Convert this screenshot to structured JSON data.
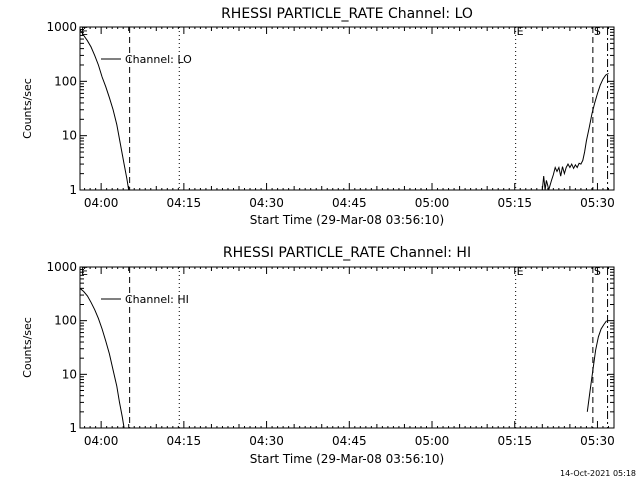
{
  "chart_data": [
    {
      "type": "line",
      "title": "RHESSI PARTICLE_RATE Channel: LO",
      "xlabel": "Start Time (29-Mar-08 03:56:10)",
      "ylabel": "Counts/sec",
      "y_scale": "log",
      "xlim": [
        "03:56:10",
        "05:33:00"
      ],
      "ylim": [
        1,
        1000
      ],
      "y_ticks": [
        "1",
        "10",
        "100",
        "1000"
      ],
      "x_ticks": [
        "04:00",
        "04:15",
        "04:30",
        "04:45",
        "05:00",
        "05:15",
        "05:30"
      ],
      "legend": {
        "position": "top-left",
        "entries": [
          "Channel: LO"
        ]
      },
      "markers": [
        {
          "label": "E",
          "time": "03:56:10",
          "style": "dotted"
        },
        {
          "label": "",
          "time": "04:05:10",
          "style": "dashed"
        },
        {
          "label": "",
          "time": "04:14:10",
          "style": "dotted"
        },
        {
          "label": "E",
          "time": "05:15:10",
          "style": "dotted"
        },
        {
          "label": "S",
          "time": "05:29:10",
          "style": "dashed"
        },
        {
          "label": "",
          "time": "05:31:50",
          "style": "dashdot"
        }
      ],
      "series": [
        {
          "name": "Channel: LO",
          "segments": [
            [
              [
                "03:56:10",
                900
              ],
              [
                "03:56:50",
                700
              ],
              [
                "03:57:30",
                560
              ],
              [
                "03:58:10",
                430
              ],
              [
                "03:58:50",
                300
              ],
              [
                "03:59:30",
                200
              ],
              [
                "04:00:10",
                120
              ],
              [
                "04:00:50",
                80
              ],
              [
                "04:01:30",
                50
              ],
              [
                "04:02:10",
                30
              ],
              [
                "04:02:50",
                16
              ],
              [
                "04:03:30",
                7
              ],
              [
                "04:04:10",
                3
              ],
              [
                "04:04:40",
                1.6
              ],
              [
                "04:05:00",
                1
              ]
            ],
            [
              [
                "05:20:00",
                1
              ],
              [
                "05:20:15",
                1.8
              ],
              [
                "05:20:30",
                1
              ],
              [
                "05:20:45",
                1.5
              ],
              [
                "05:21:00",
                1.2
              ],
              [
                "05:21:10",
                1
              ],
              [
                "05:21:40",
                1.5
              ],
              [
                "05:22:00",
                1.9
              ],
              [
                "05:22:20",
                2.6
              ],
              [
                "05:22:40",
                2.2
              ],
              [
                "05:23:00",
                2.6
              ],
              [
                "05:23:20",
                1.8
              ],
              [
                "05:23:40",
                2.7
              ],
              [
                "05:24:00",
                2.0
              ],
              [
                "05:24:20",
                2.6
              ],
              [
                "05:24:40",
                3.0
              ],
              [
                "05:25:00",
                2.6
              ],
              [
                "05:25:20",
                3.0
              ],
              [
                "05:25:40",
                2.5
              ],
              [
                "05:26:00",
                2.9
              ],
              [
                "05:26:20",
                2.6
              ],
              [
                "05:26:40",
                3.1
              ],
              [
                "05:27:00",
                3.0
              ],
              [
                "05:27:20",
                3.5
              ],
              [
                "05:27:40",
                5
              ],
              [
                "05:28:00",
                8
              ],
              [
                "05:28:30",
                14
              ],
              [
                "05:29:00",
                25
              ],
              [
                "05:29:30",
                40
              ],
              [
                "05:30:00",
                60
              ],
              [
                "05:30:30",
                85
              ],
              [
                "05:31:00",
                110
              ],
              [
                "05:31:30",
                130
              ],
              [
                "05:32:00",
                140
              ]
            ]
          ]
        }
      ]
    },
    {
      "type": "line",
      "title": "RHESSI PARTICLE_RATE Channel: HI",
      "xlabel": "Start Time (29-Mar-08 03:56:10)",
      "ylabel": "Counts/sec",
      "y_scale": "log",
      "xlim": [
        "03:56:10",
        "05:33:00"
      ],
      "ylim": [
        1,
        1000
      ],
      "y_ticks": [
        "1",
        "10",
        "100",
        "1000"
      ],
      "x_ticks": [
        "04:00",
        "04:15",
        "04:30",
        "04:45",
        "05:00",
        "05:15",
        "05:30"
      ],
      "legend": {
        "position": "top-left",
        "entries": [
          "Channel: HI"
        ]
      },
      "markers": [
        {
          "label": "E",
          "time": "03:56:10",
          "style": "dotted"
        },
        {
          "label": "",
          "time": "04:05:10",
          "style": "dashed"
        },
        {
          "label": "",
          "time": "04:14:10",
          "style": "dotted"
        },
        {
          "label": "E",
          "time": "05:15:10",
          "style": "dotted"
        },
        {
          "label": "S",
          "time": "05:29:10",
          "style": "dashed"
        },
        {
          "label": "",
          "time": "05:31:50",
          "style": "dashdot"
        }
      ],
      "series": [
        {
          "name": "Channel: HI",
          "segments": [
            [
              [
                "03:56:10",
                400
              ],
              [
                "03:56:50",
                350
              ],
              [
                "03:57:30",
                290
              ],
              [
                "03:58:10",
                220
              ],
              [
                "03:58:50",
                160
              ],
              [
                "03:59:30",
                110
              ],
              [
                "04:00:10",
                70
              ],
              [
                "04:00:50",
                42
              ],
              [
                "04:01:30",
                24
              ],
              [
                "04:02:10",
                12
              ],
              [
                "04:02:50",
                6
              ],
              [
                "04:03:20",
                3
              ],
              [
                "04:03:50",
                1.6
              ],
              [
                "04:04:10",
                1
              ]
            ],
            [
              [
                "05:28:10",
                2
              ],
              [
                "05:28:40",
                5
              ],
              [
                "05:29:10",
                12
              ],
              [
                "05:29:40",
                28
              ],
              [
                "05:30:10",
                50
              ],
              [
                "05:30:40",
                70
              ],
              [
                "05:31:10",
                85
              ],
              [
                "05:31:40",
                100
              ]
            ]
          ]
        }
      ]
    }
  ],
  "footer": {
    "timestamp": "14-Oct-2021 05:18"
  }
}
